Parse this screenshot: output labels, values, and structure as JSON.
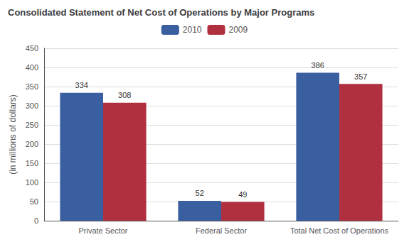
{
  "chart_data": {
    "type": "bar",
    "title": "Consolidated Statement of Net Cost of Operations by Major Programs",
    "ylabel": "(in millions of dollars)",
    "categories": [
      "Private Sector",
      "Federal Sector",
      "Total Net Cost of Operations"
    ],
    "series": [
      {
        "name": "2010",
        "color": "#3a5fa0",
        "values": [
          334,
          52,
          386
        ]
      },
      {
        "name": "2009",
        "color": "#b03040",
        "values": [
          308,
          49,
          357
        ]
      }
    ],
    "ylim": [
      0,
      450
    ],
    "yticks": [
      0,
      50,
      100,
      150,
      200,
      250,
      300,
      350,
      400,
      450
    ],
    "grid": true,
    "legend": "upper center",
    "data_labels": true
  }
}
